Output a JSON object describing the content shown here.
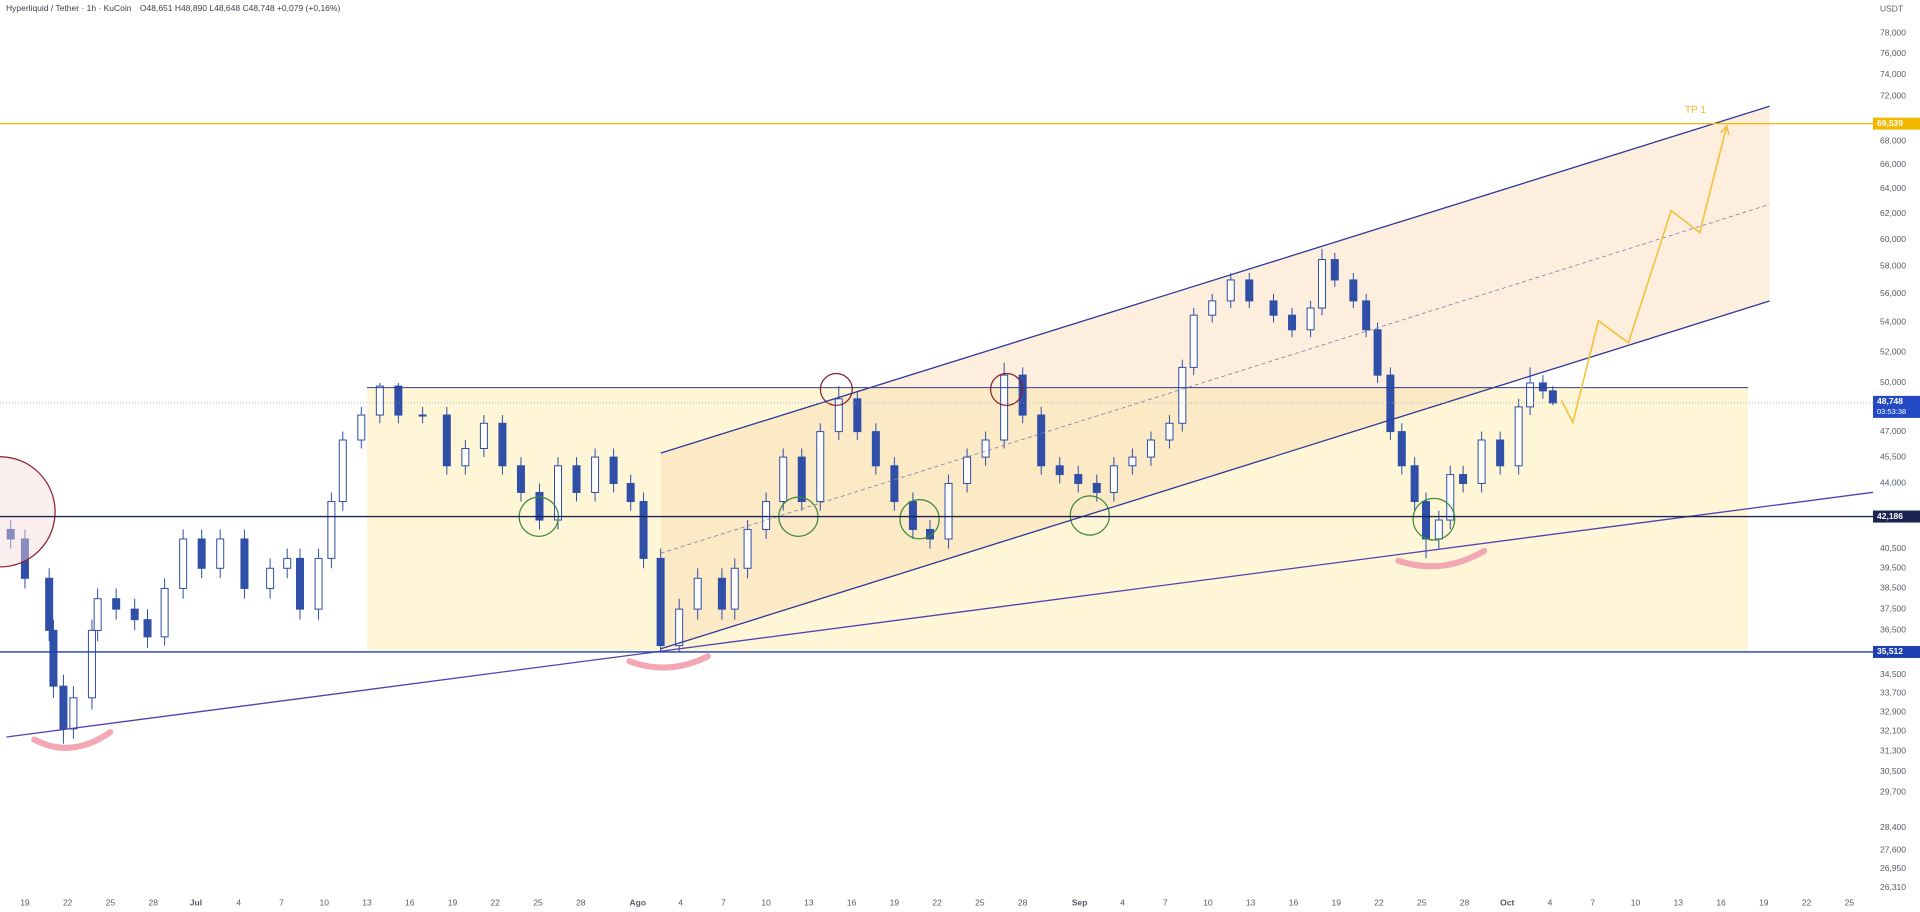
{
  "header": {
    "symbol": "Hyperliquid / Tether · 1h · KuCoin",
    "ohlc": "O48,651 H48,890 L48,648 C48,748 +0,079 (+0,16%)"
  },
  "chart_data": {
    "type": "candlestick",
    "currency": "USDT",
    "log_scale": true,
    "grid": true,
    "color": "#2f4fa8",
    "x": [
      -13,
      -12,
      -10.3,
      -10,
      -9.3,
      -8.6,
      -7.3,
      -6.9,
      -5.6,
      -4.3,
      -3.4,
      -2.2,
      -0.9,
      0.4,
      1.7,
      3.4,
      5.2,
      6.4,
      7.3,
      8.6,
      9.5,
      10.3,
      11.6,
      12.9,
      14.2,
      15.9,
      17.6,
      18.9,
      20.2,
      21.5,
      22.8,
      24.1,
      25.4,
      26.7,
      28,
      29.3,
      30.5,
      31.4,
      32.6,
      33.9,
      35.2,
      36.9,
      37.8,
      38.7,
      40,
      41.2,
      42.5,
      43.8,
      45.1,
      46.4,
      47.7,
      49,
      50.3,
      51.5,
      52.8,
      54.1,
      55.4,
      56.7,
      58,
      59.3,
      60.6,
      61.9,
      63.2,
      64.4,
      65.7,
      67,
      68.3,
      69.2,
      70,
      71.3,
      72.6,
      73.9,
      75.6,
      76.9,
      78.2,
      79,
      79.9,
      81.2,
      82.1,
      82.9,
      83.8,
      84.6,
      85.5,
      86.3,
      87.2,
      88,
      88.9,
      90.2,
      91.5,
      92.8,
      93.6,
      94.5,
      95.2
    ],
    "open": [
      41.5,
      41,
      39,
      36.5,
      34,
      32.2,
      33.5,
      36.5,
      38,
      37.5,
      37,
      36.2,
      38.5,
      41,
      39.5,
      41,
      38.5,
      39.5,
      40,
      37.5,
      40,
      43,
      46.5,
      48,
      49.8,
      48,
      48,
      45,
      46,
      47.5,
      45,
      43.5,
      42,
      45,
      43.5,
      45.5,
      44,
      43,
      40,
      35.8,
      37.5,
      39,
      37.5,
      39.5,
      41.5,
      43,
      45.5,
      43,
      47,
      49,
      47,
      45,
      43,
      41.5,
      41,
      44,
      45.5,
      46.5,
      50.5,
      48,
      45,
      44.5,
      44,
      43.5,
      45,
      45.5,
      46.5,
      47.5,
      51,
      54.5,
      55.5,
      57,
      55.5,
      54.5,
      53.5,
      55,
      58.5,
      57,
      55.5,
      53.5,
      50.5,
      47,
      45,
      43,
      41,
      42,
      44.5,
      44,
      46.5,
      45,
      48.5,
      50,
      49.5
    ],
    "high": [
      42,
      41.5,
      39.5,
      37,
      34.5,
      34,
      37,
      38.5,
      38.5,
      38,
      37.5,
      39,
      41.5,
      41.5,
      41.5,
      41.5,
      40,
      40.5,
      40.5,
      40.5,
      43.5,
      47,
      48.5,
      50,
      50,
      48.5,
      48.5,
      46.5,
      48,
      48,
      45.5,
      44,
      45.5,
      45.5,
      46,
      46,
      44.5,
      43.5,
      40.5,
      38,
      39.5,
      39.5,
      40,
      42,
      43.5,
      46,
      46,
      47.5,
      49.8,
      49.5,
      47.5,
      45.5,
      43.5,
      42,
      44.5,
      46,
      47,
      51.3,
      51,
      48.5,
      45.5,
      45,
      44.5,
      45.5,
      46,
      47,
      48,
      51.5,
      55,
      56,
      57.5,
      57.5,
      56,
      55,
      55.5,
      59.3,
      59,
      57.5,
      56,
      54,
      51,
      47.5,
      45.5,
      43.5,
      42.5,
      45,
      45,
      47,
      47,
      49,
      51,
      50.5,
      49.8
    ],
    "low": [
      40.5,
      38.5,
      36,
      33.5,
      31.6,
      31.8,
      33,
      36,
      37,
      36.5,
      35.7,
      35.8,
      38,
      39,
      39,
      38,
      38,
      39,
      37,
      37,
      39.5,
      42.5,
      46,
      47.5,
      47.5,
      47.5,
      44.5,
      44.5,
      45.5,
      44.5,
      43,
      41.5,
      41.5,
      43,
      43,
      43.5,
      42.5,
      39.5,
      35.5,
      35.5,
      37,
      37,
      37,
      39,
      41,
      42.5,
      42.5,
      42.5,
      46.5,
      46.5,
      44.5,
      42.5,
      41,
      40.5,
      40.5,
      43.5,
      45,
      46,
      47.5,
      44.5,
      44,
      43.5,
      43,
      43,
      44.5,
      45,
      46,
      47,
      50.5,
      54,
      55,
      55,
      54,
      53,
      53,
      54.5,
      56.5,
      55,
      53,
      50,
      46.5,
      44.5,
      42.5,
      40,
      40.5,
      41.5,
      43.5,
      43.5,
      44.5,
      44.5,
      48,
      49,
      48.6
    ],
    "close": [
      41,
      39,
      36.5,
      34,
      32.2,
      33.5,
      36.5,
      38,
      37.5,
      37,
      36.2,
      38.5,
      41,
      39.5,
      41,
      38.5,
      39.5,
      40,
      37.5,
      40,
      43,
      46.5,
      48,
      49.8,
      48,
      48,
      45,
      46,
      47.5,
      45,
      43.5,
      42,
      45,
      43.5,
      45.5,
      44,
      43,
      40,
      35.8,
      37.5,
      39,
      37.5,
      39.5,
      41.5,
      43,
      45.5,
      43,
      47,
      49,
      47,
      45,
      43,
      41.5,
      41,
      44,
      45.5,
      46.5,
      50.5,
      48,
      45,
      44.5,
      44,
      43.5,
      45,
      45.5,
      46.5,
      47.5,
      51,
      54.5,
      55.5,
      57,
      55.5,
      54.5,
      53.5,
      55,
      58.5,
      57,
      55.5,
      53.5,
      50.5,
      47,
      45,
      43,
      41,
      42,
      44.5,
      44,
      46.5,
      45,
      48.5,
      50,
      49.5,
      48.748
    ],
    "xlim": [
      -13.75,
      117.66
    ],
    "ylim": [
      25.706,
      81.38
    ],
    "xticks": [
      {
        "value": -12,
        "label": "19"
      },
      {
        "value": -9,
        "label": "22"
      },
      {
        "value": -6,
        "label": "25"
      },
      {
        "value": -3,
        "label": "28"
      },
      {
        "value": 0,
        "label": "Jul"
      },
      {
        "value": 3,
        "label": "4"
      },
      {
        "value": 6,
        "label": "7"
      },
      {
        "value": 9,
        "label": "10"
      },
      {
        "value": 12,
        "label": "13"
      },
      {
        "value": 15,
        "label": "16"
      },
      {
        "value": 18,
        "label": "19"
      },
      {
        "value": 21,
        "label": "22"
      },
      {
        "value": 24,
        "label": "25"
      },
      {
        "value": 27,
        "label": "28"
      },
      {
        "value": 31,
        "label": "Ago"
      },
      {
        "value": 34,
        "label": "4"
      },
      {
        "value": 37,
        "label": "7"
      },
      {
        "value": 40,
        "label": "10"
      },
      {
        "value": 43,
        "label": "13"
      },
      {
        "value": 46,
        "label": "16"
      },
      {
        "value": 49,
        "label": "19"
      },
      {
        "value": 52,
        "label": "22"
      },
      {
        "value": 55,
        "label": "25"
      },
      {
        "value": 58,
        "label": "28"
      },
      {
        "value": 62,
        "label": "Sep"
      },
      {
        "value": 65,
        "label": "4"
      },
      {
        "value": 68,
        "label": "7"
      },
      {
        "value": 71,
        "label": "10"
      },
      {
        "value": 74,
        "label": "13"
      },
      {
        "value": 77,
        "label": "16"
      },
      {
        "value": 80,
        "label": "19"
      },
      {
        "value": 83,
        "label": "22"
      },
      {
        "value": 86,
        "label": "25"
      },
      {
        "value": 89,
        "label": "28"
      },
      {
        "value": 92,
        "label": "Oct"
      },
      {
        "value": 95,
        "label": "4"
      },
      {
        "value": 98,
        "label": "7"
      },
      {
        "value": 101,
        "label": "10"
      },
      {
        "value": 104,
        "label": "13"
      },
      {
        "value": 107,
        "label": "16"
      },
      {
        "value": 110,
        "label": "19"
      },
      {
        "value": 113,
        "label": "22"
      },
      {
        "value": 116,
        "label": "25"
      }
    ],
    "yticks": [
      {
        "value": 78,
        "label": "78,000"
      },
      {
        "value": 76,
        "label": "76,000"
      },
      {
        "value": 74,
        "label": "74,000"
      },
      {
        "value": 72,
        "label": "72,000"
      },
      {
        "value": 68,
        "label": "68,000"
      },
      {
        "value": 66,
        "label": "66,000"
      },
      {
        "value": 64,
        "label": "64,000"
      },
      {
        "value": 62,
        "label": "62,000"
      },
      {
        "value": 60,
        "label": "60,000"
      },
      {
        "value": 58,
        "label": "58,000"
      },
      {
        "value": 56,
        "label": "56,000"
      },
      {
        "value": 54,
        "label": "54,000"
      },
      {
        "value": 52,
        "label": "52,000"
      },
      {
        "value": 50,
        "label": "50,000"
      },
      {
        "value": 47,
        "label": "47,000"
      },
      {
        "value": 45.5,
        "label": "45,500"
      },
      {
        "value": 44,
        "label": "44,000"
      },
      {
        "value": 40.5,
        "label": "40,500"
      },
      {
        "value": 39.5,
        "label": "39,500"
      },
      {
        "value": 38.5,
        "label": "38,500"
      },
      {
        "value": 37.5,
        "label": "37,500"
      },
      {
        "value": 36.5,
        "label": "36,500"
      },
      {
        "value": 34.5,
        "label": "34,500"
      },
      {
        "value": 33.7,
        "label": "33,700"
      },
      {
        "value": 32.9,
        "label": "32,900"
      },
      {
        "value": 32.1,
        "label": "32,100"
      },
      {
        "value": 31.3,
        "label": "31,300"
      },
      {
        "value": 30.5,
        "label": "30,500"
      },
      {
        "value": 29.7,
        "label": "29,700"
      },
      {
        "value": 28.4,
        "label": "28,400"
      },
      {
        "value": 27.6,
        "label": "27,600"
      },
      {
        "value": 26.95,
        "label": "26,950"
      },
      {
        "value": 26.31,
        "label": "26,310"
      }
    ],
    "levels": [
      {
        "value": 69.539,
        "label": "69,539",
        "color": "#f5b800"
      },
      {
        "value": 42.186,
        "label": "42,186",
        "color": "#1c2451"
      },
      {
        "value": 35.512,
        "label": "35,512",
        "color": "#1d3fb0"
      }
    ],
    "last_price": {
      "value": 48.748,
      "label": "48,748",
      "countdown": "03:53:38",
      "color": "#2349c4"
    },
    "range_box": {
      "x": [
        12,
        108.9
      ],
      "y": [
        35.512,
        49.7
      ],
      "color": "#fdf3c8",
      "edge": "#2c3e8c"
    },
    "channel": {
      "x": [
        32.6,
        110.4
      ],
      "upper": [
        45.73,
        71.09
      ],
      "middle": [
        40.26,
        62.75
      ],
      "lower": [
        35.65,
        55.49
      ],
      "color": "#2c3a9a",
      "fill": "#fbd9b4"
    },
    "support": {
      "x": [
        -13.3,
        117.7
      ],
      "y": [
        31.87,
        43.51
      ],
      "color": "#5142b0"
    },
    "projection": {
      "x": [
        95.8,
        96.6,
        98.4,
        100.5,
        103.5,
        105.5,
        107.4
      ],
      "y": [
        48.91,
        47.55,
        54.12,
        52.62,
        62.25,
        60.54,
        69.33
      ],
      "color": "#f5c13a"
    },
    "target": {
      "text": "TP 1",
      "x": 105.2,
      "y": 70.7
    }
  }
}
